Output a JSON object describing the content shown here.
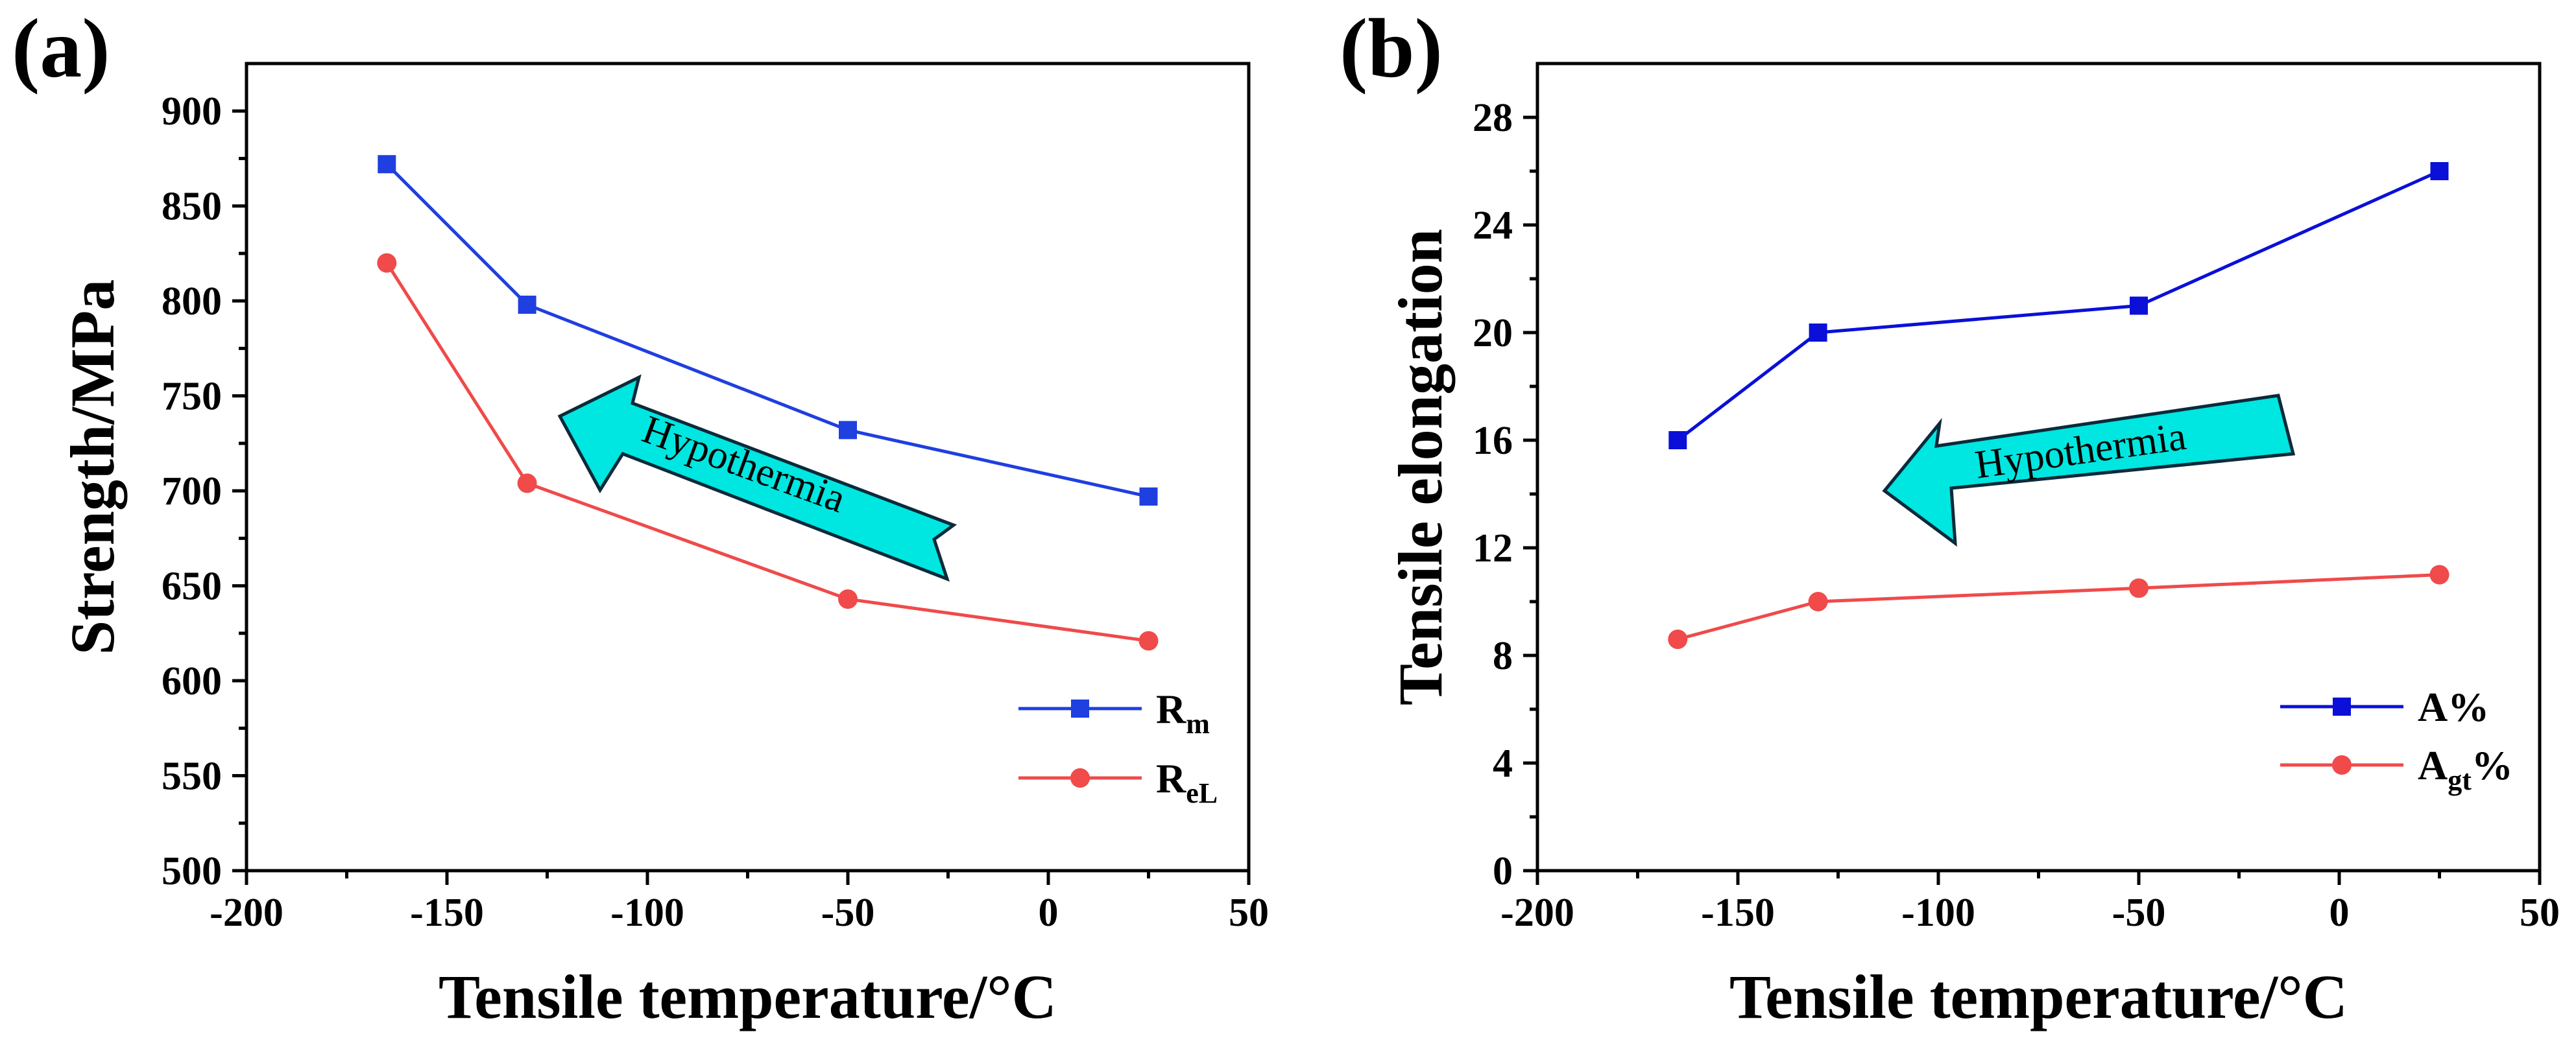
{
  "chart_data": [
    {
      "type": "line",
      "panel_label": "(a)",
      "xlabel": "Tensile temperature/°C",
      "ylabel": "Strength/MPa",
      "xlim": [
        -200,
        50
      ],
      "ylim": [
        500,
        925
      ],
      "xticks": [
        -200,
        -150,
        -100,
        -50,
        0,
        50
      ],
      "yticks": [
        500,
        550,
        600,
        650,
        700,
        750,
        800,
        850,
        900
      ],
      "grid": false,
      "legend_position": "bottom-right",
      "annotation": "Hypothermia",
      "series": [
        {
          "name": "R",
          "subscript": "m",
          "color": "#1f3fe0",
          "marker": "square",
          "x": [
            -165,
            -130,
            -50,
            25
          ],
          "y": [
            872,
            798,
            732,
            697
          ]
        },
        {
          "name": "R",
          "subscript": "eL",
          "color": "#f04a4a",
          "marker": "circle",
          "x": [
            -165,
            -130,
            -50,
            25
          ],
          "y": [
            820,
            704,
            643,
            621
          ]
        }
      ]
    },
    {
      "type": "line",
      "panel_label": "(b)",
      "xlabel": "Tensile temperature/°C",
      "ylabel": "Tensile elongation",
      "xlim": [
        -200,
        50
      ],
      "ylim": [
        0,
        30
      ],
      "xticks": [
        -200,
        -150,
        -100,
        -50,
        0,
        50
      ],
      "yticks": [
        0,
        4,
        8,
        12,
        16,
        20,
        24,
        28
      ],
      "grid": false,
      "legend_position": "bottom-right",
      "annotation": "Hypothermia",
      "series": [
        {
          "name": "A%",
          "subscript": "",
          "suffix": "",
          "color": "#0a10d8",
          "marker": "square",
          "x": [
            -165,
            -130,
            -50,
            25
          ],
          "y": [
            16,
            20,
            21,
            26
          ]
        },
        {
          "name": "A",
          "subscript": "gt",
          "suffix": "%",
          "color": "#f04a4a",
          "marker": "circle",
          "x": [
            -165,
            -130,
            -50,
            25
          ],
          "y": [
            8.6,
            10.0,
            10.5,
            11.0
          ]
        }
      ]
    }
  ]
}
